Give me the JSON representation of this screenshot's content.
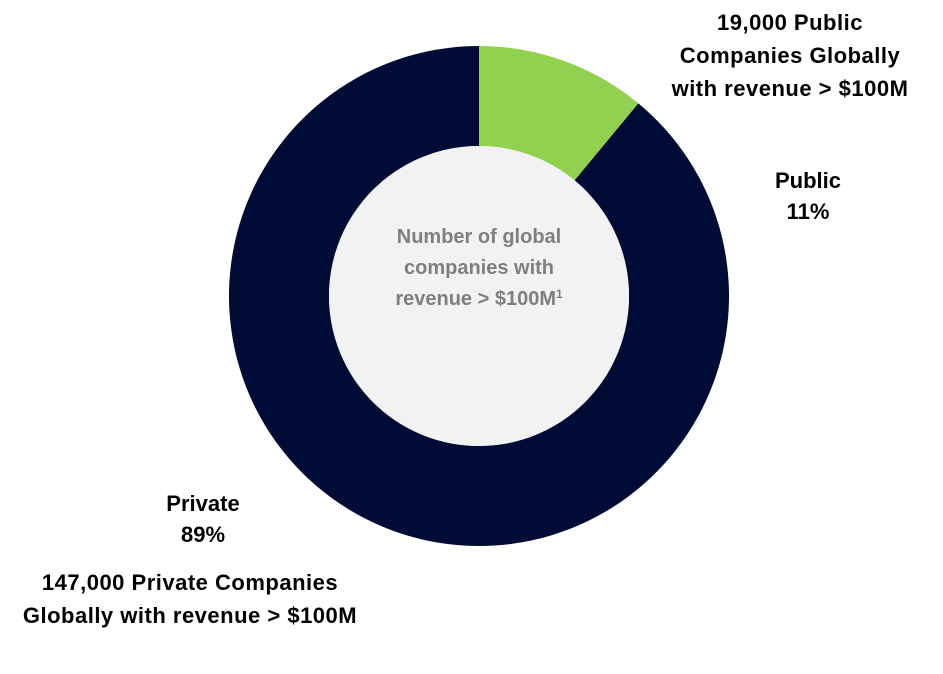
{
  "chart_data": {
    "type": "donut",
    "categories": [
      "Public",
      "Private"
    ],
    "values": [
      11,
      89
    ],
    "value_labels": [
      "11%",
      "89%"
    ],
    "colors": [
      "#92d050",
      "#000c36"
    ],
    "center_label": "Number of global companies with revenue > $100M",
    "center_label_footnote": "1",
    "annotations": [
      "19,000 Public Companies Globally with revenue > $100M",
      "147,000 Private Companies Globally with revenue > $100M"
    ]
  }
}
